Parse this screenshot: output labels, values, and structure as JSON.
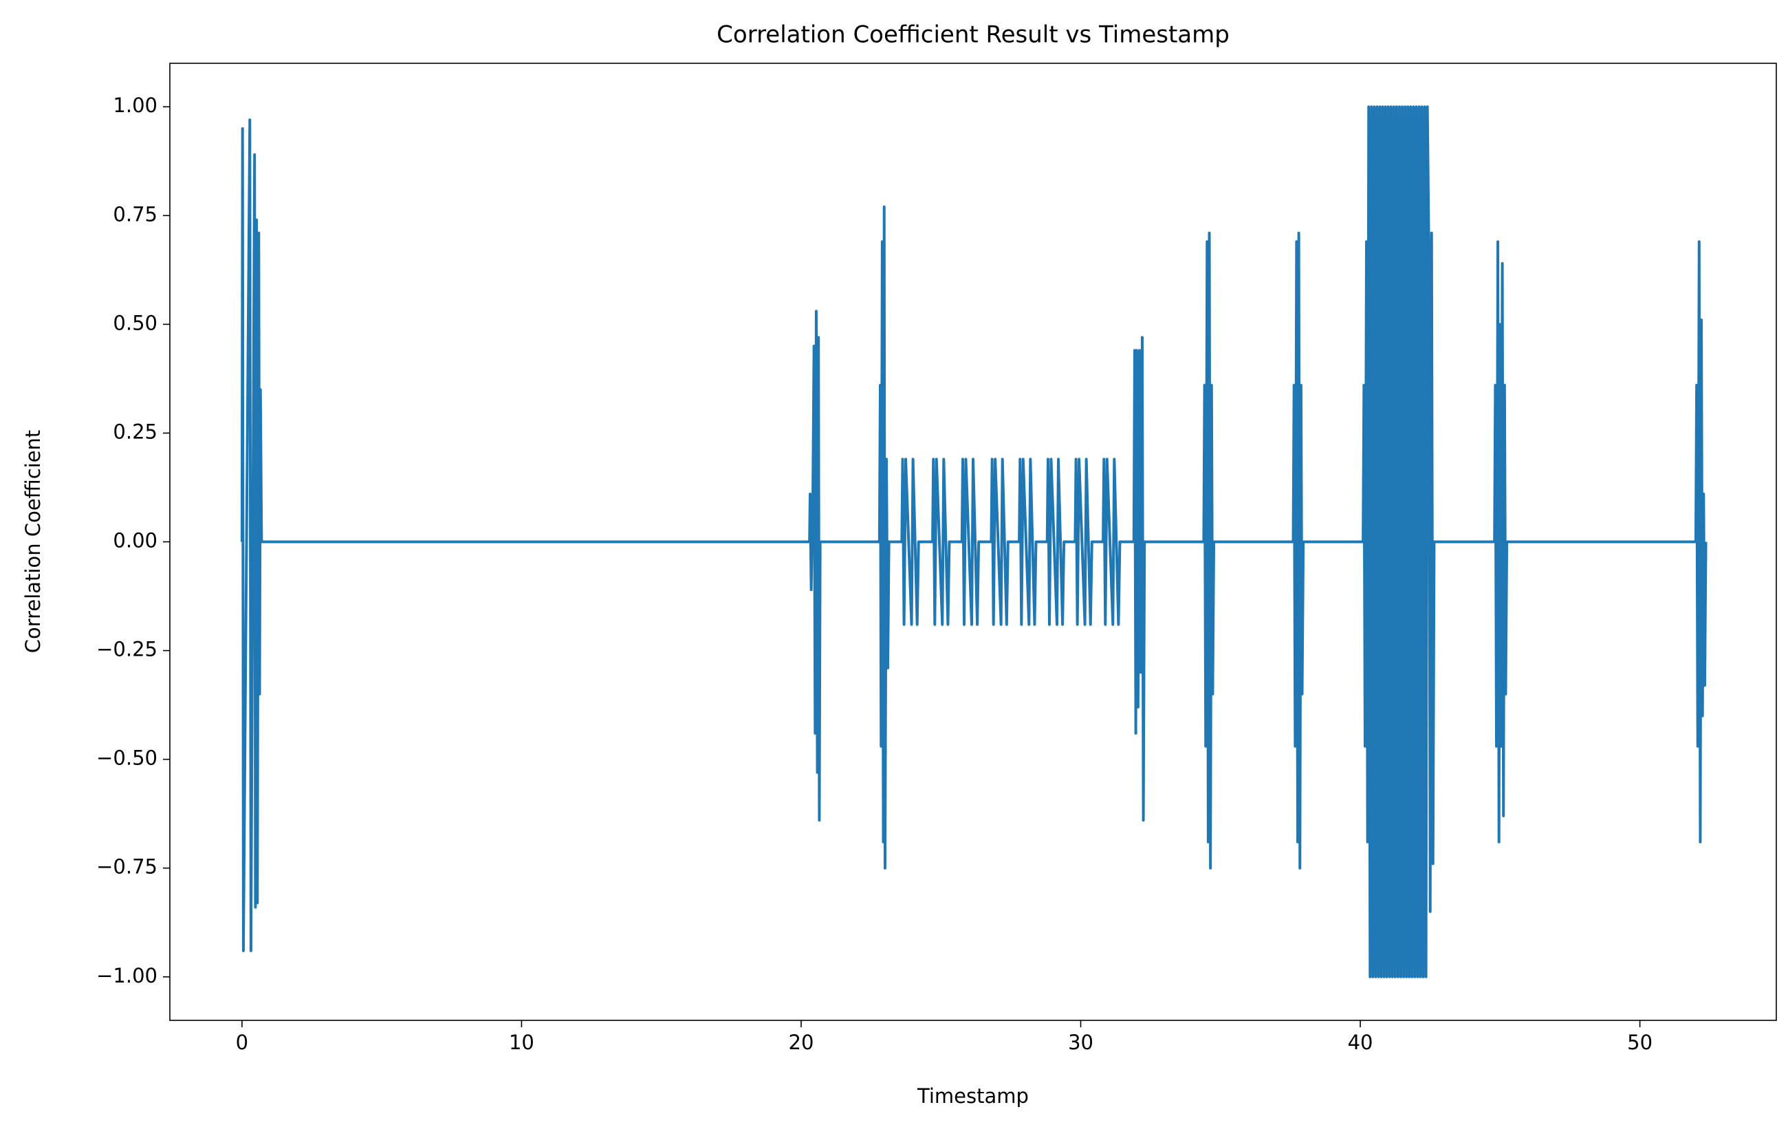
{
  "chart_data": {
    "type": "line",
    "title": "Correlation Coefficient Result vs Timestamp",
    "xlabel": "Timestamp",
    "ylabel": "Correlation Coefficient",
    "x": [
      0,
      0.02,
      0.05,
      0.28,
      0.32,
      0.45,
      0.48,
      0.52,
      0.55,
      0.6,
      0.63,
      0.66,
      0.7,
      20.3,
      20.32,
      20.36,
      20.42,
      20.46,
      20.5,
      20.54,
      20.58,
      20.62,
      20.65,
      20.68,
      22.8,
      22.83,
      22.86,
      22.9,
      22.94,
      22.97,
      23.0,
      23.05,
      23.1,
      23.14,
      23.6,
      23.63,
      23.68,
      23.74,
      23.95,
      24.0,
      24.15,
      24.2,
      24.7,
      24.73,
      24.78,
      24.84,
      25.05,
      25.1,
      25.25,
      25.3,
      25.75,
      25.78,
      25.83,
      25.89,
      26.1,
      26.15,
      26.3,
      26.35,
      26.8,
      26.83,
      26.88,
      26.94,
      27.15,
      27.2,
      27.35,
      27.4,
      27.8,
      27.83,
      27.88,
      27.94,
      28.15,
      28.2,
      28.35,
      28.4,
      28.8,
      28.83,
      28.88,
      28.94,
      29.15,
      29.2,
      29.35,
      29.4,
      29.8,
      29.83,
      29.88,
      29.94,
      30.15,
      30.2,
      30.35,
      30.4,
      30.8,
      30.83,
      30.88,
      30.94,
      31.15,
      31.2,
      31.35,
      31.4,
      31.9,
      31.93,
      31.97,
      32.0,
      32.05,
      32.1,
      32.15,
      32.2,
      32.24,
      32.28,
      34.4,
      34.43,
      34.47,
      34.52,
      34.56,
      34.6,
      34.64,
      34.68,
      34.72,
      34.76,
      37.6,
      37.63,
      37.67,
      37.72,
      37.76,
      37.8,
      37.84,
      37.88,
      37.92,
      37.96,
      40.1,
      40.13,
      40.17,
      40.22,
      40.26,
      40.3,
      40.35,
      40.4,
      40.45,
      40.5,
      40.55,
      40.6,
      40.65,
      40.7,
      40.75,
      40.8,
      40.85,
      40.9,
      40.95,
      41.0,
      41.05,
      41.1,
      41.15,
      41.2,
      41.25,
      41.3,
      41.35,
      41.4,
      41.45,
      41.5,
      41.55,
      41.6,
      41.65,
      41.7,
      41.75,
      41.8,
      41.85,
      41.9,
      41.95,
      42.0,
      42.05,
      42.1,
      42.15,
      42.2,
      42.25,
      42.3,
      42.35,
      42.4,
      42.45,
      42.5,
      42.55,
      42.6,
      42.64,
      44.8,
      44.83,
      44.87,
      44.92,
      44.96,
      45.0,
      45.04,
      45.08,
      45.12,
      45.16,
      45.2,
      45.24,
      52.0,
      52.03,
      52.07,
      52.12,
      52.16,
      52.2,
      52.24,
      52.28,
      52.32,
      52.36
    ],
    "series": [
      {
        "color": "#1f77b4",
        "values": [
          0,
          0.95,
          -0.94,
          0.97,
          -0.94,
          0.89,
          -0.84,
          0.74,
          -0.83,
          0.71,
          -0.35,
          0.35,
          0,
          0,
          0.11,
          -0.11,
          0.11,
          0.45,
          -0.44,
          0.53,
          -0.53,
          0.47,
          -0.64,
          0,
          0,
          0.36,
          -0.47,
          0.69,
          -0.69,
          0.77,
          -0.75,
          0.19,
          -0.29,
          0,
          0,
          0.19,
          -0.19,
          0.19,
          -0.19,
          0.19,
          -0.19,
          0,
          0,
          0.19,
          -0.19,
          0.19,
          -0.19,
          0.19,
          -0.19,
          0,
          0,
          0.19,
          -0.19,
          0.19,
          -0.19,
          0.19,
          -0.19,
          0,
          0,
          0.19,
          -0.19,
          0.19,
          -0.19,
          0.19,
          -0.19,
          0,
          0,
          0.19,
          -0.19,
          0.19,
          -0.19,
          0.19,
          -0.19,
          0,
          0,
          0.19,
          -0.19,
          0.19,
          -0.19,
          0.19,
          -0.19,
          0,
          0,
          0.19,
          -0.19,
          0.19,
          -0.19,
          0.19,
          -0.19,
          0,
          0,
          0.19,
          -0.19,
          0.19,
          -0.19,
          0.19,
          -0.19,
          0,
          0,
          0.44,
          -0.44,
          0.44,
          -0.38,
          0.44,
          -0.3,
          0.47,
          -0.64,
          0,
          0,
          0.36,
          -0.47,
          0.69,
          -0.69,
          0.71,
          -0.75,
          0.36,
          -0.35,
          0,
          0,
          0.36,
          -0.47,
          0.69,
          -0.69,
          0.71,
          -0.75,
          0.36,
          -0.35,
          0,
          0,
          0.36,
          -0.47,
          0.69,
          -0.69,
          1,
          -1,
          1,
          -1,
          1,
          -1,
          1,
          -1,
          1,
          -1,
          1,
          -1,
          1,
          -1,
          1,
          -1,
          1,
          -1,
          1,
          -1,
          1,
          -1,
          1,
          -1,
          1,
          -1,
          1,
          -1,
          1,
          -1,
          1,
          -1,
          1,
          -1,
          1,
          -1,
          1,
          -1,
          1,
          -1,
          1,
          -1,
          1,
          0.69,
          -0.85,
          0.71,
          -0.74,
          0,
          0,
          0.36,
          -0.47,
          0.69,
          -0.69,
          0.5,
          -0.47,
          0.64,
          -0.63,
          0.36,
          -0.35,
          0,
          0,
          0.36,
          -0.47,
          0.69,
          -0.69,
          0.51,
          -0.4,
          0.11,
          -0.33,
          0
        ]
      }
    ],
    "xlim": [
      -2.58,
      54.88
    ],
    "ylim": [
      -1.1,
      1.1
    ],
    "xticks": [
      0,
      10,
      20,
      30,
      40,
      50
    ],
    "yticks": [
      {
        "value": -1,
        "label": "−1.00"
      },
      {
        "value": -0.75,
        "label": "−0.75"
      },
      {
        "value": -0.5,
        "label": "−0.50"
      },
      {
        "value": -0.25,
        "label": "−0.25"
      },
      {
        "value": 0,
        "label": "0.00"
      },
      {
        "value": 0.25,
        "label": "0.25"
      },
      {
        "value": 0.5,
        "label": "0.50"
      },
      {
        "value": 0.75,
        "label": "0.75"
      },
      {
        "value": 1,
        "label": "1.00"
      }
    ],
    "grid": false
  }
}
